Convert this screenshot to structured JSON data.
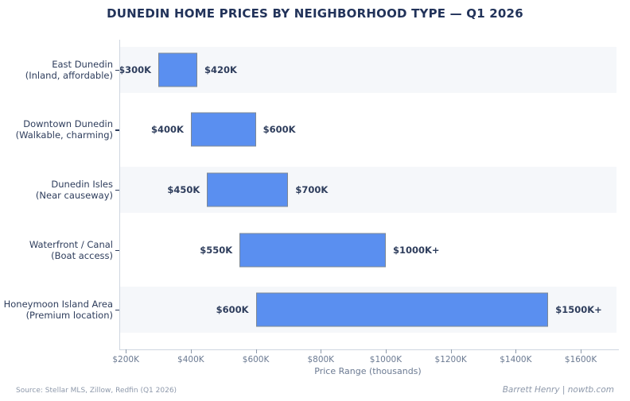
{
  "title": "DUNEDIN HOME PRICES BY NEIGHBORHOOD TYPE — Q1 2026",
  "chart_data": {
    "type": "bar",
    "orientation": "horizontal-range",
    "title": "DUNEDIN HOME PRICES BY NEIGHBORHOOD TYPE — Q1 2026",
    "xlabel": "Price Range (thousands)",
    "xlim": [
      180,
      1710
    ],
    "grid": false,
    "band_rows": [
      0,
      2,
      4
    ],
    "rows": [
      {
        "name": "East Dunedin",
        "subtitle": "(Inland, affordable)",
        "min": 300,
        "max": 420,
        "min_label": "$300K",
        "max_label": "$420K"
      },
      {
        "name": "Downtown Dunedin",
        "subtitle": "(Walkable, charming)",
        "min": 400,
        "max": 600,
        "min_label": "$400K",
        "max_label": "$600K"
      },
      {
        "name": "Dunedin Isles",
        "subtitle": "(Near causeway)",
        "min": 450,
        "max": 700,
        "min_label": "$450K",
        "max_label": "$700K"
      },
      {
        "name": "Waterfront / Canal",
        "subtitle": "(Boat access)",
        "min": 550,
        "max": 1000,
        "min_label": "$550K",
        "max_label": "$1000K+"
      },
      {
        "name": "Honeymoon Island Area",
        "subtitle": "(Premium location)",
        "min": 600,
        "max": 1500,
        "min_label": "$600K",
        "max_label": "$1500K+"
      }
    ],
    "x_ticks": [
      {
        "value": 200,
        "label": "$200K"
      },
      {
        "value": 400,
        "label": "$400K"
      },
      {
        "value": 600,
        "label": "$600K"
      },
      {
        "value": 800,
        "label": "$800K"
      },
      {
        "value": 1000,
        "label": "$1000K"
      },
      {
        "value": 1200,
        "label": "$1200K"
      },
      {
        "value": 1400,
        "label": "$1400K"
      },
      {
        "value": 1600,
        "label": "$1600K"
      }
    ],
    "colors": {
      "bar_fill": "#5a8ff0",
      "bar_border": "#7d8894",
      "row_band": "#f5f7fa",
      "title": "#22335a",
      "label": "#2e3d5c",
      "tick": "#8b98a9",
      "tick_label": "#6b7a92",
      "spine": "#cfd6e0",
      "footer": "#8e99ab",
      "background": "#ffffff"
    }
  },
  "footer": {
    "source": "Source: Stellar MLS, Zillow, Redfin (Q1 2026)",
    "credit": "Barrett Henry | nowtb.com"
  }
}
